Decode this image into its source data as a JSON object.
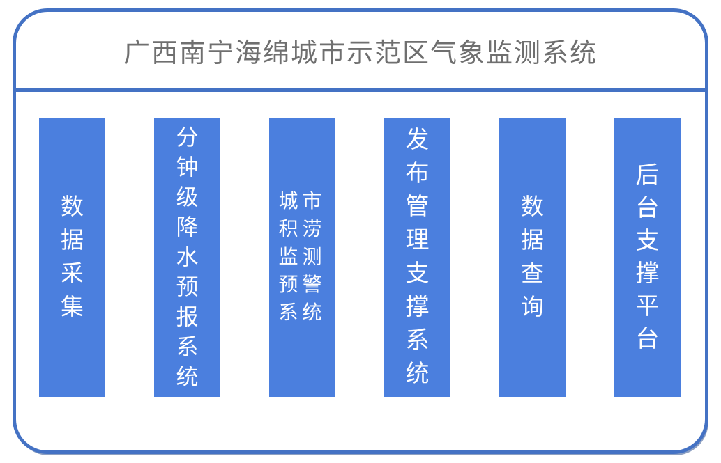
{
  "title": "广西南宁海绵城市示范区气象监测系统",
  "colors": {
    "frame_border": "#4472C4",
    "bar_fill": "#4B7FDE",
    "title_text": "#6F6F6F",
    "bar_text": "#FFFFFF"
  },
  "modules": [
    {
      "label": "数据采集"
    },
    {
      "label": "分钟级降水预报系统"
    },
    {
      "label": "城市积涝监测预警系统"
    },
    {
      "label": "发布管理支撑系统"
    },
    {
      "label": "数据查询"
    },
    {
      "label": "后台支撑平台"
    }
  ]
}
